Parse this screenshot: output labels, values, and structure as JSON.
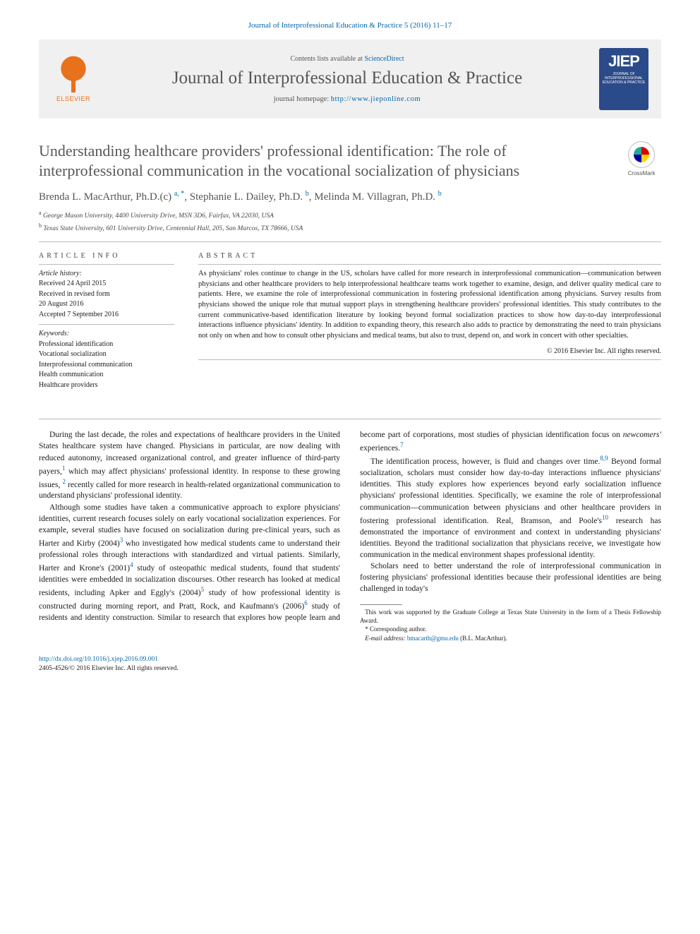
{
  "header": {
    "citation_line": "Journal of Interprofessional Education & Practice 5 (2016) 11–17",
    "contents_prefix": "Contents lists available at ",
    "contents_link": "ScienceDirect",
    "journal_name": "Journal of Interprofessional Education & Practice",
    "homepage_prefix": "journal homepage: ",
    "homepage_url": "http://www.jieponline.com",
    "elsevier_word": "ELSEVIER",
    "jiep_big": "JIEP",
    "jiep_small": "JOURNAL OF INTERPROFESSIONAL EDUCATION & PRACTICE"
  },
  "title": "Understanding healthcare providers' professional identification: The role of interprofessional communication in the vocational socialization of physicians",
  "crossmark_label": "CrossMark",
  "authors_html": "Brenda L. MacArthur, Ph.D.(c) <span class='sup'>a, *</span>, Stephanie L. Dailey, Ph.D. <span class='sup'>b</span>, Melinda M. Villagran, Ph.D. <span class='sup'>b</span>",
  "affiliations": [
    {
      "sup": "a",
      "text": "George Mason University, 4400 University Drive, MSN 3D6, Fairfax, VA 22030, USA"
    },
    {
      "sup": "b",
      "text": "Texas State University, 601 University Drive, Centennial Hall, 205, San Marcos, TX 78666, USA"
    }
  ],
  "info": {
    "heading": "ARTICLE INFO",
    "history_label": "Article history:",
    "history": "Received 24 April 2015\nReceived in revised form\n20 August 2016\nAccepted 7 September 2016",
    "keywords_label": "Keywords:",
    "keywords": "Professional identification\nVocational socialization\nInterprofessional communication\nHealth communication\nHealthcare providers"
  },
  "abstract": {
    "heading": "ABSTRACT",
    "text": "As physicians' roles continue to change in the US, scholars have called for more research in interprofessional communication—communication between physicians and other healthcare providers to help interprofessional healthcare teams work together to examine, design, and deliver quality medical care to patients. Here, we examine the role of interprofessional communication in fostering professional identification among physicians. Survey results from physicians showed the unique role that mutual support plays in strengthening healthcare providers' professional identities. This study contributes to the current communicative-based identification literature by looking beyond formal socialization practices to show how day-to-day interprofessional interactions influence physicians' identity. In addition to expanding theory, this research also adds to practice by demonstrating the need to train physicians not only on when and how to consult other physicians and medical teams, but also to trust, depend on, and work in concert with other specialties.",
    "copyright": "© 2016 Elsevier Inc. All rights reserved."
  },
  "body": {
    "p1": "During the last decade, the roles and expectations of healthcare providers in the United States healthcare system have changed. Physicians in particular, are now dealing with reduced autonomy, increased organizational control, and greater influence of third-party payers,",
    "p1b": " which may affect physicians' professional identity. In response to these growing issues, ",
    "p1c": " recently called for more research in health-related organizational communication to understand physicians' professional identity.",
    "p2a": "Although some studies have taken a communicative approach to explore physicians' identities, current research focuses solely on early vocational socialization experiences. For example, several studies have focused on socialization during pre-clinical years, such as Harter and Kirby (2004)",
    "p2b": " who investigated how medical students came to understand their professional roles through interactions with standardized and virtual patients. Similarly, Harter and Krone's (2001)",
    "p2c": " study of osteopathic medical students, found that students' identities were embedded in socialization ",
    "p3a": "discourses. Other research has looked at medical residents, including Apker and Eggly's (2004)",
    "p3b": " study of how professional identity is constructed during morning report, and Pratt, Rock, and Kaufmann's (2006)",
    "p3c": " study of residents and identity construction. Similar to research that explores how people learn and become part of corporations, most studies of physician identification focus on ",
    "p3d": "newcomers'",
    "p3e": " experiences.",
    "p4a": "The identification process, however, is fluid and changes over time.",
    "p4b": " Beyond formal socialization, scholars must consider how day-to-day interactions influence physicians' identities. This study explores how experiences beyond early socialization influence physicians' professional identities. Specifically, we examine the role of interprofessional communication—communication between physicians and other healthcare providers in fostering professional identification. Real, Bramson, and Poole's",
    "p4c": " research has demonstrated the importance of environment and context in understanding physicians' identities. Beyond the traditional socialization that physicians receive, we investigate how communication in the medical environment shapes professional identity.",
    "p5": "Scholars need to better understand the role of interprofessional communication in fostering physicians' professional identities because their professional identities are being challenged in today's"
  },
  "refs": {
    "r1": "1",
    "r2": "2",
    "r3": "3",
    "r4": "4",
    "r5": "5",
    "r6": "6",
    "r7": "7",
    "r89": "8,9",
    "r10": "10"
  },
  "footnotes": {
    "funding": "This work was supported by the Graduate College at Texas State University in the form of a Thesis Fellowship Award.",
    "corr_label": "* Corresponding author.",
    "email_label": "E-mail address: ",
    "email": "bmacarth@gmu.edu",
    "email_person": " (B.L. MacArthur)."
  },
  "footer": {
    "doi": "http://dx.doi.org/10.1016/j.xjep.2016.09.001",
    "issn_line": "2405-4526/© 2016 Elsevier Inc. All rights reserved."
  },
  "colors": {
    "link": "#0066aa",
    "orange": "#e8711c",
    "masthead_bg": "#f0f0f0",
    "title_gray": "#585858",
    "jiep_bg": "#2a4a8a"
  }
}
